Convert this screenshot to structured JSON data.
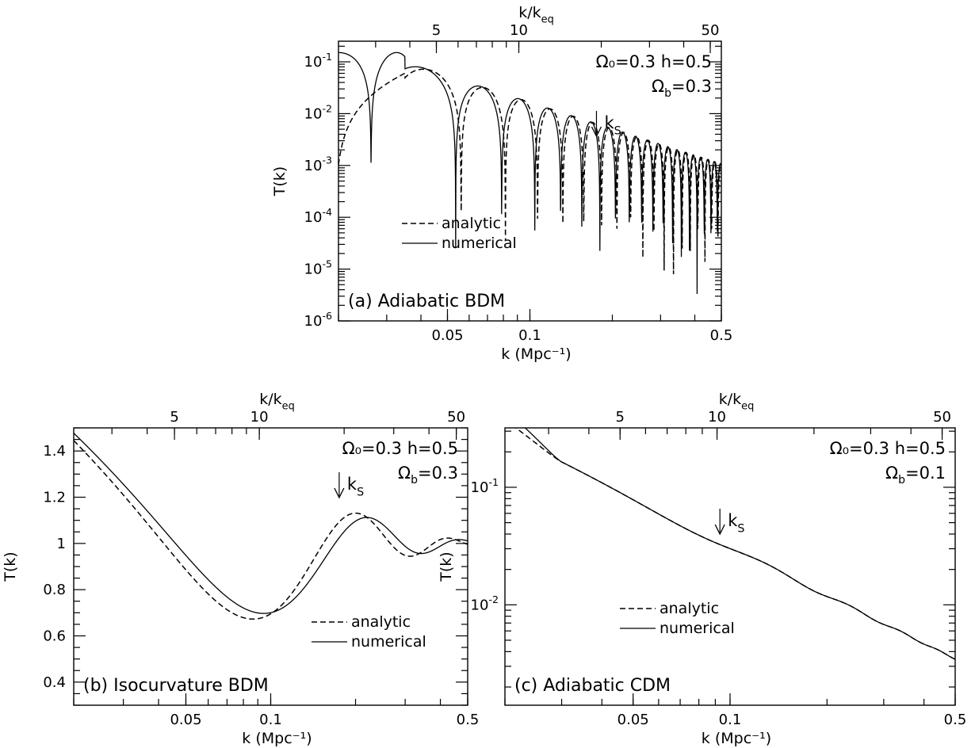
{
  "chart_data": [
    {
      "id": "a",
      "type": "line",
      "panel_label": "(a) Adiabatic BDM",
      "xlabel": "k (Mpc⁻¹)",
      "xlabel_top": "k/k",
      "xlabel_top_sub": "eq",
      "ylabel": "T(k)",
      "xscale": "log",
      "yscale": "log",
      "xlim": [
        0.02,
        0.5
      ],
      "ylim": [
        1e-06,
        0.25
      ],
      "x_ticks": [
        {
          "v": 0.05,
          "label": "0.05"
        },
        {
          "v": 0.1,
          "label": "0.1"
        },
        {
          "v": 0.5,
          "label": "0.5"
        }
      ],
      "top_ticks": [
        {
          "v": 5,
          "label": "5"
        },
        {
          "v": 10,
          "label": "10"
        },
        {
          "v": 50,
          "label": "50"
        }
      ],
      "k_eq_ratio": 0.00911,
      "y_ticks": [
        {
          "v": 1e-06,
          "base": "10",
          "exp": "-6"
        },
        {
          "v": 1e-05,
          "base": "10",
          "exp": "-5"
        },
        {
          "v": 0.0001,
          "base": "10",
          "exp": "-4"
        },
        {
          "v": 0.001,
          "base": "10",
          "exp": "-3"
        },
        {
          "v": 0.01,
          "base": "10",
          "exp": "-2"
        },
        {
          "v": 0.1,
          "base": "10",
          "exp": "-1"
        }
      ],
      "params_line1": "Ω₀=0.3  h=0.5",
      "params_line2": "Ω_b=0.3",
      "ks_marker": {
        "x": 0.175,
        "label": "k_S"
      },
      "legend": {
        "analytic": "analytic",
        "numerical": "numerical"
      },
      "series": [
        {
          "name": "analytic",
          "style": "dashed",
          "model": "adiabatic",
          "phase": 0.0,
          "amp": 1.0
        },
        {
          "name": "numerical",
          "style": "solid",
          "model": "adiabatic",
          "phase": 0.1,
          "amp": 1.0
        }
      ]
    },
    {
      "id": "b",
      "type": "line",
      "panel_label": "(b) Isocurvature BDM",
      "xlabel": "k (Mpc⁻¹)",
      "xlabel_top": "k/k",
      "xlabel_top_sub": "eq",
      "ylabel": "T(k)",
      "xscale": "log",
      "yscale": "linear",
      "xlim": [
        0.02,
        0.5
      ],
      "ylim": [
        0.3,
        1.5
      ],
      "x_ticks": [
        {
          "v": 0.05,
          "label": "0.05"
        },
        {
          "v": 0.1,
          "label": "0.1"
        },
        {
          "v": 0.5,
          "label": "0.5"
        }
      ],
      "top_ticks": [
        {
          "v": 5,
          "label": "5"
        },
        {
          "v": 10,
          "label": "10"
        },
        {
          "v": 50,
          "label": "50"
        }
      ],
      "k_eq_ratio": 0.00911,
      "y_ticks": [
        {
          "v": 0.4,
          "label": "0.4"
        },
        {
          "v": 0.6,
          "label": "0.6"
        },
        {
          "v": 0.8,
          "label": "0.8"
        },
        {
          "v": 1.0,
          "label": "1"
        },
        {
          "v": 1.2,
          "label": "1.2"
        },
        {
          "v": 1.4,
          "label": "1.4"
        }
      ],
      "params_line1": "Ω₀=0.3  h=0.5",
      "params_line2": "Ω_b=0.3",
      "ks_marker": {
        "x": 0.175,
        "label": "k_S"
      },
      "legend": {
        "analytic": "analytic",
        "numerical": "numerical"
      },
      "series": [
        {
          "name": "analytic",
          "style": "dashed",
          "model": "isocurvature",
          "rpeak": 1.1
        },
        {
          "name": "numerical",
          "style": "solid",
          "model": "isocurvature",
          "rpeak": 1.0
        }
      ]
    },
    {
      "id": "c",
      "type": "line",
      "panel_label": "(c) Adiabatic CDM",
      "xlabel": "k (Mpc⁻¹)",
      "xlabel_top": "k/k",
      "xlabel_top_sub": "eq",
      "ylabel": "T(k)",
      "xscale": "log",
      "yscale": "log",
      "xlim": [
        0.02,
        0.5
      ],
      "ylim": [
        0.0014,
        0.32
      ],
      "x_ticks": [
        {
          "v": 0.05,
          "label": "0.05"
        },
        {
          "v": 0.1,
          "label": "0.1"
        },
        {
          "v": 0.5,
          "label": "0.5"
        }
      ],
      "top_ticks": [
        {
          "v": 5,
          "label": "5"
        },
        {
          "v": 10,
          "label": "10"
        },
        {
          "v": 50,
          "label": "50"
        }
      ],
      "k_eq_ratio": 0.00911,
      "y_ticks": [
        {
          "v": 0.01,
          "base": "10",
          "exp": "-2"
        },
        {
          "v": 0.1,
          "base": "10",
          "exp": "-1"
        }
      ],
      "params_line1": "Ω₀=0.3  h=0.5",
      "params_line2": "Ω_b=0.1",
      "ks_marker": {
        "x": 0.093,
        "label": "k_S"
      },
      "legend": {
        "analytic": "analytic",
        "numerical": "numerical"
      },
      "series": [
        {
          "name": "analytic",
          "style": "dashed",
          "model": "cdm",
          "start": 0.18
        },
        {
          "name": "numerical",
          "style": "solid",
          "model": "cdm",
          "start": 0.25
        }
      ]
    }
  ]
}
